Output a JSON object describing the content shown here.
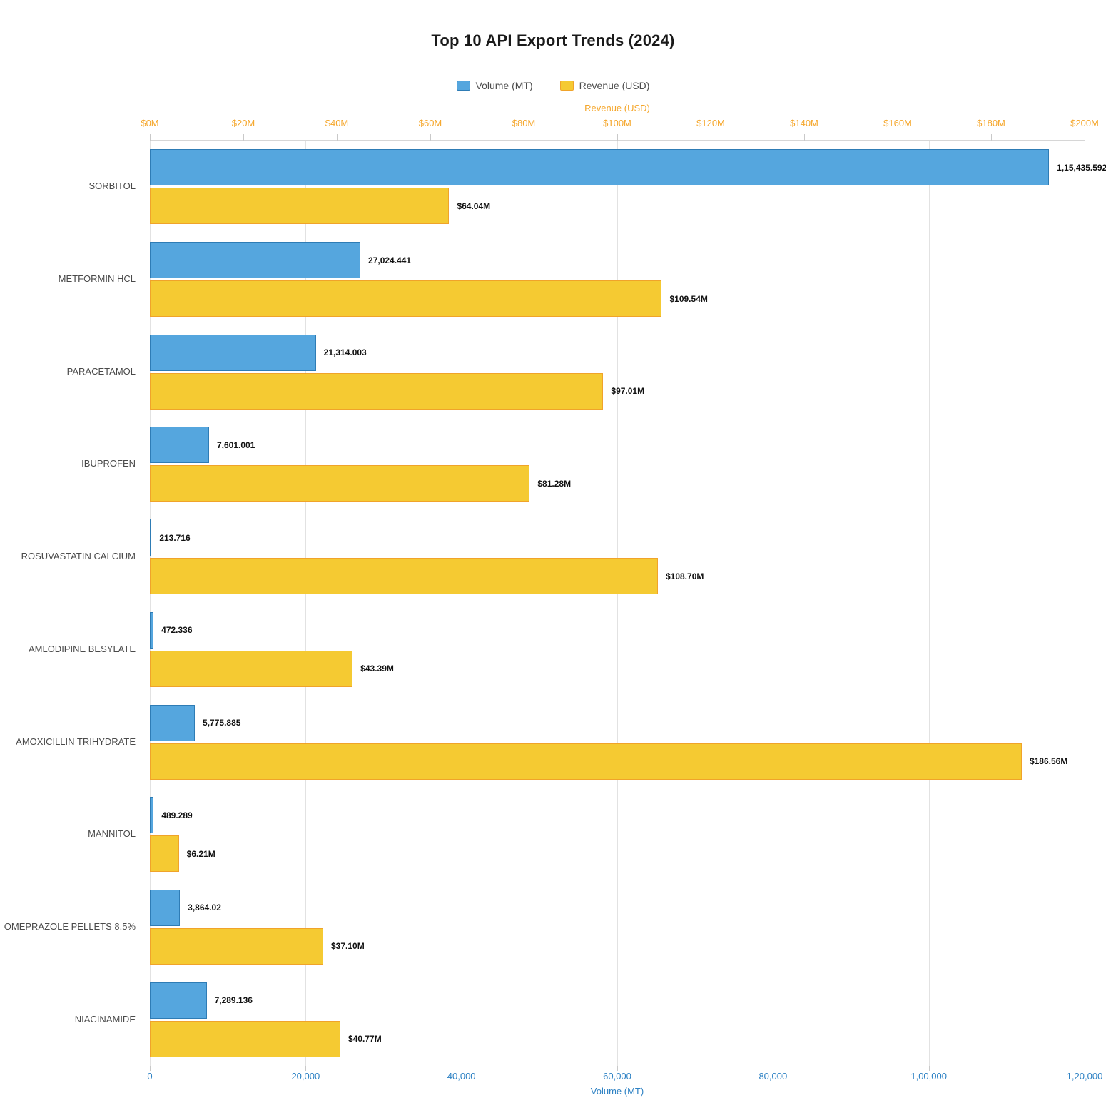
{
  "title": "Top 10 API Export Trends (2024)",
  "chart_data": {
    "type": "bar",
    "orientation": "horizontal",
    "grid": true,
    "legend_position": "top-center",
    "categories": [
      "SORBITOL",
      "METFORMIN HCL",
      "PARACETAMOL",
      "IBUPROFEN",
      "ROSUVASTATIN CALCIUM",
      "AMLODIPINE BESYLATE",
      "AMOXICILLIN TRIHYDRATE",
      "MANNITOL",
      "OMEPRAZOLE PELLETS 8.5%",
      "NIACINAMIDE"
    ],
    "series": [
      {
        "name": "Volume (MT)",
        "axis": "bottom",
        "color": "#55a6de",
        "border_color": "#2e7cb5",
        "values": [
          115435.592,
          27024.441,
          21314.003,
          7601.001,
          213.716,
          472.336,
          5775.885,
          489.289,
          3864.02,
          7289.136
        ],
        "labels": [
          "1,15,435.592",
          "27,024.441",
          "21,314.003",
          "7,601.001",
          "213.716",
          "472.336",
          "5,775.885",
          "489.289",
          "3,864.02",
          "7,289.136"
        ]
      },
      {
        "name": "Revenue (USD)",
        "axis": "top",
        "color": "#f5ca32",
        "border_color": "#f0a32a",
        "values": [
          64.04,
          109.54,
          97.01,
          81.28,
          108.7,
          43.39,
          186.56,
          6.21,
          37.1,
          40.77
        ],
        "labels": [
          "$64.04M",
          "$109.54M",
          "$97.01M",
          "$81.28M",
          "$108.70M",
          "$43.39M",
          "$186.56M",
          "$6.21M",
          "$37.10M",
          "$40.77M"
        ]
      }
    ],
    "top_axis": {
      "title": "Revenue (USD)",
      "color": "#f5a62a",
      "min": 0,
      "max": 200,
      "ticks": [
        "$0M",
        "$20M",
        "$40M",
        "$60M",
        "$80M",
        "$100M",
        "$120M",
        "$140M",
        "$160M",
        "$180M",
        "$200M"
      ]
    },
    "bottom_axis": {
      "title": "Volume (MT)",
      "color": "#2e82c4",
      "min": 0,
      "max": 120000,
      "ticks": [
        "0",
        "20,000",
        "40,000",
        "60,000",
        "80,000",
        "1,00,000",
        "1,20,000"
      ]
    },
    "value_label_color": "#111111",
    "category_label_color": "#4a4a4a",
    "grid_color": "#e2e2e2"
  }
}
